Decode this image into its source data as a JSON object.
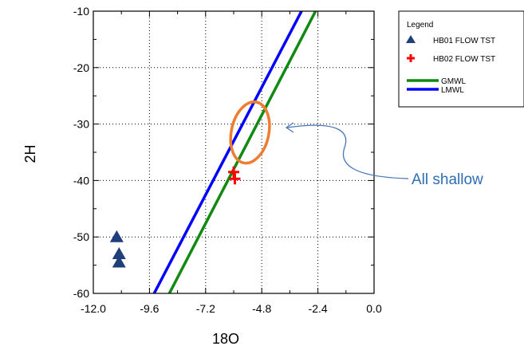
{
  "chart_data": {
    "type": "scatter",
    "xlabel": "18O",
    "ylabel": "2H",
    "xlim": [
      -12.0,
      0.0
    ],
    "ylim": [
      -60,
      -10
    ],
    "x_ticks": [
      "-12.0",
      "-9.6",
      "-7.2",
      "-4.8",
      "-2.4",
      "0.0"
    ],
    "y_ticks": [
      "-10",
      "-20",
      "-30",
      "-40",
      "-50",
      "-60"
    ],
    "grid": true,
    "legend": {
      "title": "Legend",
      "placement": "top-right",
      "entries": [
        {
          "label": "HB01 FLOW TST",
          "marker": "triangle",
          "color": "#1f3f7a"
        },
        {
          "label": "HB02 FLOW TST",
          "marker": "cross",
          "color": "#ff0000"
        },
        {
          "label": "GMWL",
          "marker": "line",
          "color": "#118a11"
        },
        {
          "label": "LMWL",
          "marker": "line",
          "color": "#0000ff"
        }
      ]
    },
    "series": [
      {
        "name": "HB01 FLOW TST",
        "kind": "points",
        "marker": "triangle",
        "color": "#1f3f7a",
        "points": [
          {
            "x": -11.0,
            "y": -50.0
          },
          {
            "x": -10.9,
            "y": -53.0
          },
          {
            "x": -10.9,
            "y": -54.5
          }
        ]
      },
      {
        "name": "HB02 FLOW TST",
        "kind": "points",
        "marker": "cross",
        "color": "#ff0000",
        "points": [
          {
            "x": -6.0,
            "y": -38.5
          },
          {
            "x": -5.95,
            "y": -39.7
          }
        ]
      },
      {
        "name": "GMWL",
        "kind": "line",
        "color": "#118a11",
        "points": [
          {
            "x": -8.75,
            "y": -60.0
          },
          {
            "x": -2.5,
            "y": -10.0
          }
        ]
      },
      {
        "name": "LMWL",
        "kind": "line",
        "color": "#0000ff",
        "points": [
          {
            "x": -9.4,
            "y": -60.0
          },
          {
            "x": -3.1,
            "y": -10.0
          }
        ]
      }
    ],
    "annotations": [
      {
        "text": "All shallow",
        "color": "#2e6db5",
        "highlight_ellipse": {
          "cx": -5.3,
          "cy": -31.5,
          "rx": 0.8,
          "ry": 5.5,
          "color": "#ee7d31"
        }
      }
    ]
  }
}
